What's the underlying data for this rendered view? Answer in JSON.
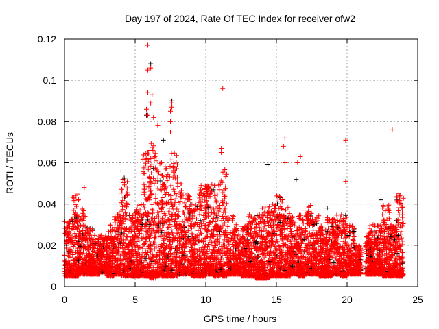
{
  "chart_data": {
    "type": "scatter",
    "title": "Day 197 of 2024, Rate Of TEC Index for receiver ofw2",
    "xlabel": "GPS time / hours",
    "ylabel": "ROTI / TECUs",
    "xlim": [
      0,
      25
    ],
    "ylim": [
      0,
      0.12
    ],
    "xticks": [
      "0",
      "5",
      "10",
      "15",
      "20",
      "25"
    ],
    "yticks": [
      "0",
      "0.02",
      "0.04",
      "0.06",
      "0.08",
      "0.1",
      "0.12"
    ],
    "grid": true,
    "marker": "plus",
    "colors": {
      "primary": "#ff0000",
      "secondary": "#000000",
      "grid": "#a0a0a0"
    },
    "dense_bins": {
      "bin_width_hours": 0.5,
      "start": [
        0,
        0.5,
        1,
        1.5,
        2,
        2.5,
        3,
        3.5,
        4,
        4.5,
        5,
        5.5,
        6,
        6.5,
        7,
        7.5,
        8,
        8.5,
        9,
        9.5,
        10,
        10.5,
        11,
        11.5,
        12,
        12.5,
        13,
        13.5,
        14,
        14.5,
        15,
        15.5,
        16,
        16.5,
        17,
        17.5,
        18,
        18.5,
        19,
        19.5,
        20,
        20.5,
        21.3,
        21.5,
        22,
        22.5,
        23,
        23.5
      ],
      "min": [
        0.005,
        0.005,
        0.006,
        0.006,
        0.006,
        0.007,
        0.005,
        0.006,
        0.005,
        0.005,
        0.005,
        0.005,
        0.004,
        0.005,
        0.005,
        0.005,
        0.006,
        0.006,
        0.005,
        0.005,
        0.006,
        0.005,
        0.005,
        0.006,
        0.006,
        0.005,
        0.005,
        0.004,
        0.004,
        0.005,
        0.005,
        0.005,
        0.006,
        0.005,
        0.006,
        0.006,
        0.005,
        0.005,
        0.006,
        0.005,
        0.006,
        0.006,
        0.006,
        0.006,
        0.006,
        0.005,
        0.005,
        0.005
      ],
      "max": [
        0.032,
        0.045,
        0.04,
        0.03,
        0.025,
        0.025,
        0.03,
        0.035,
        0.055,
        0.035,
        0.04,
        0.065,
        0.07,
        0.06,
        0.06,
        0.065,
        0.05,
        0.045,
        0.04,
        0.05,
        0.05,
        0.05,
        0.058,
        0.035,
        0.03,
        0.03,
        0.035,
        0.035,
        0.04,
        0.04,
        0.045,
        0.04,
        0.035,
        0.035,
        0.04,
        0.035,
        0.03,
        0.035,
        0.035,
        0.035,
        0.03,
        0.02,
        0.025,
        0.03,
        0.03,
        0.04,
        0.03,
        0.045
      ]
    },
    "series": [
      {
        "name": "red",
        "color": "#ff0000",
        "points": [
          [
            5.9,
            0.117
          ],
          [
            5.9,
            0.105
          ],
          [
            6.1,
            0.106
          ],
          [
            5.9,
            0.094
          ],
          [
            6.2,
            0.093
          ],
          [
            6.1,
            0.089
          ],
          [
            5.8,
            0.086
          ],
          [
            5.9,
            0.083
          ],
          [
            6.3,
            0.082
          ],
          [
            6.6,
            0.078
          ],
          [
            7.6,
            0.089
          ],
          [
            7.6,
            0.087
          ],
          [
            7.5,
            0.085
          ],
          [
            7.5,
            0.08
          ],
          [
            7.5,
            0.075
          ],
          [
            11.2,
            0.096
          ],
          [
            11.1,
            0.067
          ],
          [
            11.1,
            0.065
          ],
          [
            15.6,
            0.072
          ],
          [
            15.5,
            0.068
          ],
          [
            15.6,
            0.06
          ],
          [
            16.7,
            0.063
          ],
          [
            16.5,
            0.06
          ],
          [
            19.9,
            0.071
          ],
          [
            19.9,
            0.051
          ],
          [
            23.2,
            0.076
          ],
          [
            4.0,
            0.056
          ],
          [
            1.4,
            0.048
          ]
        ]
      },
      {
        "name": "black",
        "color": "#000000",
        "points": [
          [
            6.1,
            0.108
          ],
          [
            5.8,
            0.083
          ],
          [
            14.4,
            0.059
          ],
          [
            7.0,
            0.071
          ],
          [
            7.6,
            0.09
          ],
          [
            16.4,
            0.052
          ],
          [
            22.4,
            0.042
          ],
          [
            18.6,
            0.038
          ]
        ]
      }
    ]
  }
}
